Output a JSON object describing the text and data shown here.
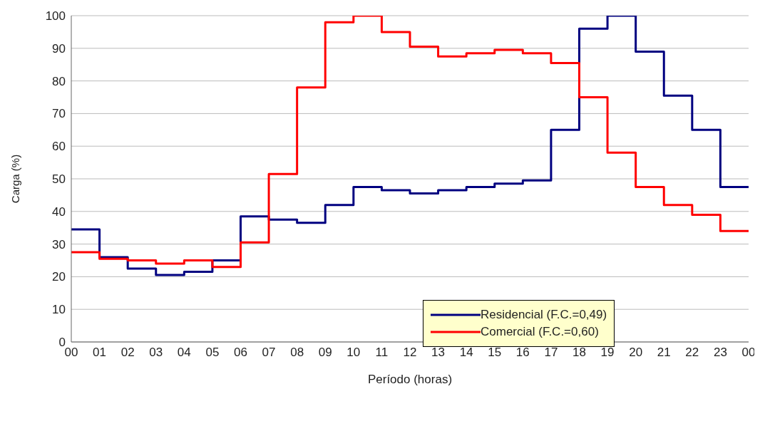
{
  "chart_data": {
    "type": "step",
    "xlabel": "Período (horas)",
    "ylabel": "Carga (%)",
    "x": [
      0,
      1,
      2,
      3,
      4,
      5,
      6,
      7,
      8,
      9,
      10,
      11,
      12,
      13,
      14,
      15,
      16,
      17,
      18,
      19,
      20,
      21,
      22,
      23,
      24
    ],
    "series": [
      {
        "name": "Residencial (F.C.=0,49)",
        "color": "#000080",
        "values": [
          34.5,
          26,
          22.5,
          20.5,
          21.5,
          25,
          38.5,
          37.5,
          36.5,
          42,
          47.5,
          46.5,
          45.5,
          46.5,
          47.5,
          48.5,
          49.5,
          65,
          96,
          100,
          89,
          75.5,
          65,
          47.5,
          47.5
        ]
      },
      {
        "name": "Comercial (F.C.=0,60)",
        "color": "#ff0000",
        "values": [
          27.5,
          25.5,
          25,
          24,
          25,
          23,
          30.5,
          51.5,
          78,
          98,
          100,
          95,
          90.5,
          87.5,
          88.5,
          89.5,
          88.5,
          85.5,
          75,
          58,
          47.5,
          42,
          39,
          34,
          34
        ]
      }
    ],
    "xlim": [
      0,
      24
    ],
    "xticks": [
      {
        "value": 0,
        "label": "00"
      },
      {
        "value": 1,
        "label": "01"
      },
      {
        "value": 2,
        "label": "02"
      },
      {
        "value": 3,
        "label": "03"
      },
      {
        "value": 4,
        "label": "04"
      },
      {
        "value": 5,
        "label": "05"
      },
      {
        "value": 6,
        "label": "06"
      },
      {
        "value": 7,
        "label": "07"
      },
      {
        "value": 8,
        "label": "08"
      },
      {
        "value": 9,
        "label": "09"
      },
      {
        "value": 10,
        "label": "10"
      },
      {
        "value": 11,
        "label": "11"
      },
      {
        "value": 12,
        "label": "12"
      },
      {
        "value": 13,
        "label": "13"
      },
      {
        "value": 14,
        "label": "14"
      },
      {
        "value": 15,
        "label": "15"
      },
      {
        "value": 16,
        "label": "16"
      },
      {
        "value": 17,
        "label": "17"
      },
      {
        "value": 18,
        "label": "18"
      },
      {
        "value": 19,
        "label": "19"
      },
      {
        "value": 20,
        "label": "20"
      },
      {
        "value": 21,
        "label": "21"
      },
      {
        "value": 22,
        "label": "22"
      },
      {
        "value": 23,
        "label": "23"
      },
      {
        "value": 24,
        "label": "00"
      }
    ],
    "ylim": [
      0,
      100
    ],
    "yticks": [
      0,
      10,
      20,
      30,
      40,
      50,
      60,
      70,
      80,
      90,
      100
    ],
    "grid": "y",
    "legend": "bottom right",
    "marker": "none",
    "line_style": "solid"
  }
}
